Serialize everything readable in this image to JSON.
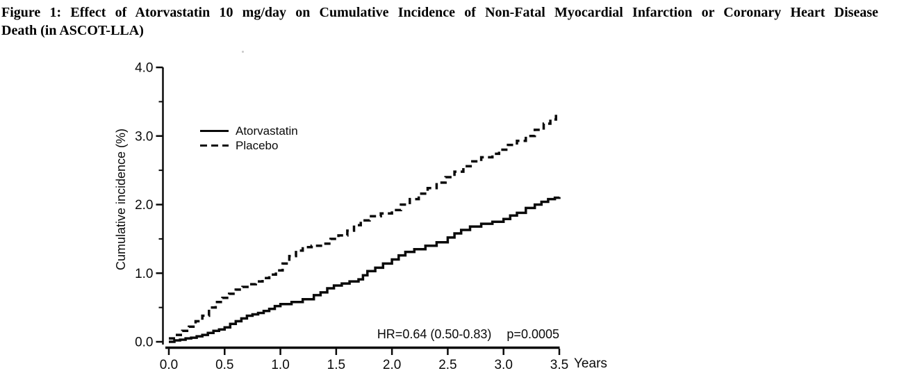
{
  "figure": {
    "title_line1": "Figure 1: Effect of Atorvastatin 10 mg/day on Cumulative Incidence of Non-Fatal Myocardial Infarction or Coronary Heart Disease",
    "title_line2": "Death (in ASCOT-LLA)"
  },
  "annotation": {
    "hr": "HR=0.64 (0.50-0.83)",
    "p": "p=0.0005"
  },
  "colors": {
    "line": "#0a0a0a",
    "background": "#ffffff"
  },
  "chart_data": {
    "type": "line",
    "step": true,
    "xlabel": "Years",
    "ylabel": "Cumulative incidence (%)",
    "xlim": [
      0,
      3.5
    ],
    "ylim": [
      0,
      4.0
    ],
    "grid": false,
    "legend_position": "inside-upper-left",
    "xticks": [
      0.0,
      0.5,
      1.0,
      1.5,
      2.0,
      2.5,
      3.0,
      3.5
    ],
    "xtick_labels": [
      "0.0",
      "0.5",
      "1.0",
      "1.5",
      "2.0",
      "2.5",
      "3.0",
      "3.5"
    ],
    "yticks": [
      0.0,
      1.0,
      2.0,
      3.0,
      4.0
    ],
    "ytick_labels": [
      "0.0",
      "1.0",
      "2.0",
      "3.0",
      "4.0"
    ],
    "y_minor_ticks": [
      0.5,
      1.5,
      2.5,
      3.5
    ],
    "annotation_text": "HR=0.64 (0.50-0.83)   p=0.0005",
    "series": [
      {
        "name": "Atorvastatin",
        "style": "solid",
        "color": "#0a0a0a",
        "points": [
          [
            0.0,
            0.0
          ],
          [
            0.05,
            0.02
          ],
          [
            0.1,
            0.03
          ],
          [
            0.15,
            0.05
          ],
          [
            0.2,
            0.06
          ],
          [
            0.25,
            0.08
          ],
          [
            0.3,
            0.1
          ],
          [
            0.35,
            0.13
          ],
          [
            0.4,
            0.16
          ],
          [
            0.45,
            0.18
          ],
          [
            0.5,
            0.21
          ],
          [
            0.55,
            0.26
          ],
          [
            0.6,
            0.3
          ],
          [
            0.65,
            0.34
          ],
          [
            0.7,
            0.38
          ],
          [
            0.75,
            0.4
          ],
          [
            0.8,
            0.42
          ],
          [
            0.85,
            0.45
          ],
          [
            0.9,
            0.48
          ],
          [
            0.95,
            0.52
          ],
          [
            1.0,
            0.55
          ],
          [
            1.1,
            0.58
          ],
          [
            1.2,
            0.62
          ],
          [
            1.3,
            0.68
          ],
          [
            1.36,
            0.72
          ],
          [
            1.42,
            0.78
          ],
          [
            1.48,
            0.82
          ],
          [
            1.55,
            0.85
          ],
          [
            1.62,
            0.88
          ],
          [
            1.7,
            0.91
          ],
          [
            1.74,
            0.97
          ],
          [
            1.78,
            1.03
          ],
          [
            1.85,
            1.08
          ],
          [
            1.92,
            1.14
          ],
          [
            2.0,
            1.2
          ],
          [
            2.06,
            1.26
          ],
          [
            2.12,
            1.31
          ],
          [
            2.2,
            1.35
          ],
          [
            2.3,
            1.4
          ],
          [
            2.4,
            1.45
          ],
          [
            2.5,
            1.52
          ],
          [
            2.56,
            1.58
          ],
          [
            2.62,
            1.63
          ],
          [
            2.7,
            1.68
          ],
          [
            2.8,
            1.72
          ],
          [
            2.9,
            1.75
          ],
          [
            3.0,
            1.79
          ],
          [
            3.06,
            1.84
          ],
          [
            3.12,
            1.88
          ],
          [
            3.2,
            1.95
          ],
          [
            3.28,
            2.0
          ],
          [
            3.34,
            2.04
          ],
          [
            3.4,
            2.08
          ],
          [
            3.46,
            2.1
          ],
          [
            3.5,
            2.11
          ]
        ]
      },
      {
        "name": "Placebo",
        "style": "dashed",
        "color": "#0a0a0a",
        "points": [
          [
            0.0,
            0.05
          ],
          [
            0.06,
            0.1
          ],
          [
            0.12,
            0.16
          ],
          [
            0.18,
            0.22
          ],
          [
            0.24,
            0.3
          ],
          [
            0.3,
            0.38
          ],
          [
            0.36,
            0.5
          ],
          [
            0.42,
            0.58
          ],
          [
            0.48,
            0.64
          ],
          [
            0.54,
            0.7
          ],
          [
            0.6,
            0.76
          ],
          [
            0.66,
            0.8
          ],
          [
            0.72,
            0.84
          ],
          [
            0.78,
            0.88
          ],
          [
            0.84,
            0.93
          ],
          [
            0.9,
            0.98
          ],
          [
            0.96,
            1.04
          ],
          [
            1.02,
            1.14
          ],
          [
            1.08,
            1.25
          ],
          [
            1.14,
            1.33
          ],
          [
            1.2,
            1.38
          ],
          [
            1.28,
            1.4
          ],
          [
            1.38,
            1.43
          ],
          [
            1.45,
            1.5
          ],
          [
            1.52,
            1.55
          ],
          [
            1.6,
            1.62
          ],
          [
            1.66,
            1.7
          ],
          [
            1.72,
            1.77
          ],
          [
            1.8,
            1.83
          ],
          [
            1.9,
            1.87
          ],
          [
            2.0,
            1.92
          ],
          [
            2.08,
            2.0
          ],
          [
            2.16,
            2.08
          ],
          [
            2.24,
            2.16
          ],
          [
            2.32,
            2.24
          ],
          [
            2.4,
            2.32
          ],
          [
            2.48,
            2.4
          ],
          [
            2.56,
            2.48
          ],
          [
            2.64,
            2.56
          ],
          [
            2.72,
            2.63
          ],
          [
            2.8,
            2.69
          ],
          [
            2.9,
            2.74
          ],
          [
            2.96,
            2.8
          ],
          [
            3.04,
            2.87
          ],
          [
            3.12,
            2.93
          ],
          [
            3.2,
            3.0
          ],
          [
            3.28,
            3.09
          ],
          [
            3.36,
            3.18
          ],
          [
            3.42,
            3.24
          ],
          [
            3.47,
            3.33
          ]
        ]
      }
    ]
  }
}
